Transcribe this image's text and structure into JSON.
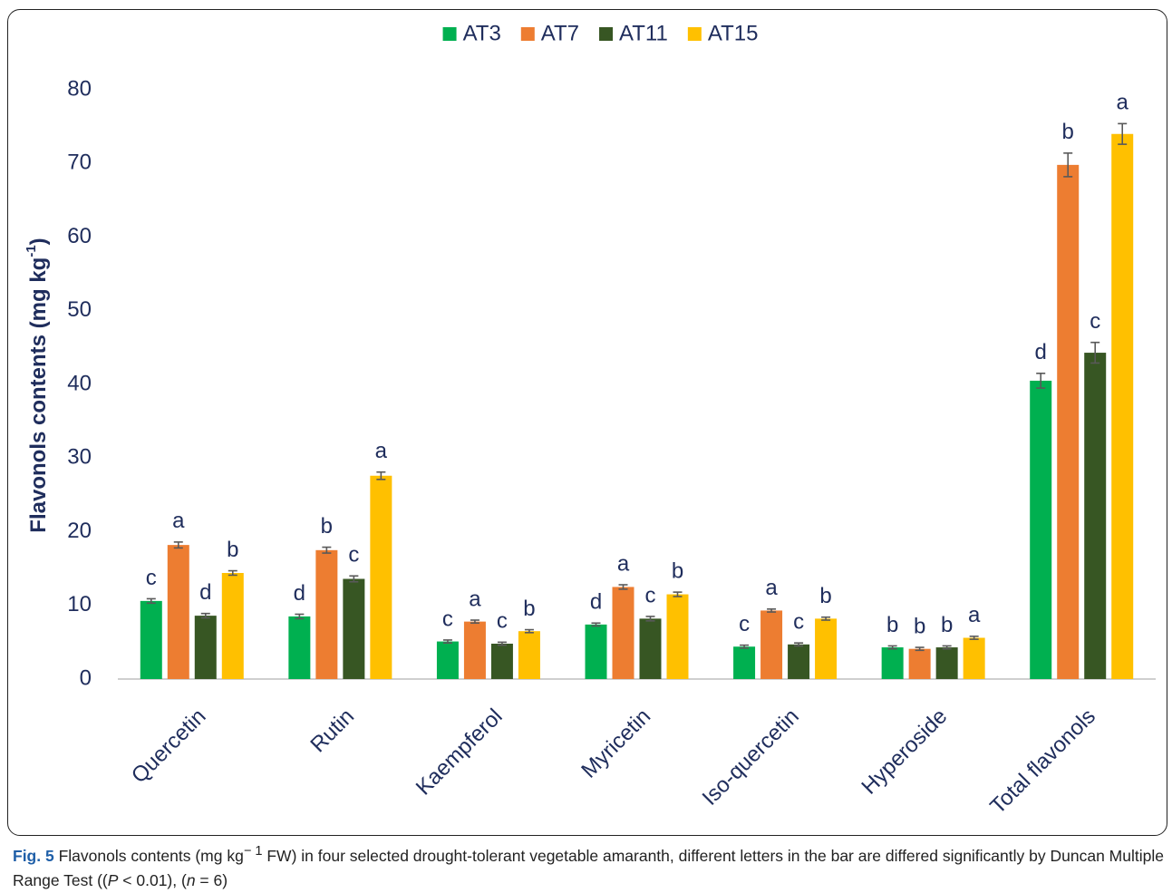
{
  "chart_data": {
    "type": "bar",
    "y_label": [
      "Flavonols contents (mg kg",
      "-1",
      ")"
    ],
    "categories": [
      "Quercetin",
      "Rutin",
      "Kaempferol",
      "Myricetin",
      "Iso-quercetin",
      "Hyperoside",
      "Total flavonols"
    ],
    "series": [
      {
        "name": "AT3",
        "color": "#00b050",
        "values": [
          10.6,
          8.5,
          5.1,
          7.4,
          4.4,
          4.3,
          40.5
        ],
        "errors": [
          0.3,
          0.3,
          0.2,
          0.2,
          0.2,
          0.2,
          1.0
        ],
        "letters": [
          "c",
          "d",
          "c",
          "d",
          "c",
          "b",
          "d"
        ]
      },
      {
        "name": "AT7",
        "color": "#ed7d31",
        "values": [
          18.2,
          17.5,
          7.8,
          12.5,
          9.3,
          4.1,
          69.8
        ],
        "errors": [
          0.4,
          0.4,
          0.2,
          0.3,
          0.2,
          0.2,
          1.6
        ],
        " letters_placeholder": null,
        "letters": [
          "a",
          "b",
          "a",
          "a",
          "a",
          "b",
          "b"
        ]
      },
      {
        "name": "AT11",
        "color": "#375623",
        "values": [
          8.6,
          13.6,
          4.8,
          8.2,
          4.7,
          4.3,
          44.3
        ],
        "errors": [
          0.3,
          0.4,
          0.2,
          0.3,
          0.2,
          0.2,
          1.4
        ],
        "letters": [
          "d",
          "c",
          "c",
          "c",
          "c",
          "b",
          "c"
        ]
      },
      {
        "name": "AT15",
        "color": "#ffc000",
        "values": [
          14.4,
          27.6,
          6.5,
          11.5,
          8.2,
          5.6,
          74.0
        ],
        "errors": [
          0.3,
          0.5,
          0.2,
          0.3,
          0.2,
          0.2,
          1.4
        ],
        "letters": [
          "b",
          "a",
          "b",
          "b",
          "b",
          "a",
          "a"
        ]
      }
    ],
    "ylim": [
      0,
      80
    ],
    "yticks": [
      0,
      10,
      20,
      30,
      40,
      50,
      60,
      70,
      80
    ],
    "grid": false,
    "legend": "top"
  },
  "caption": {
    "label": "Fig. 5",
    "parts": [
      " Flavonols contents (mg kg",
      "− 1",
      " FW) in four selected drought-tolerant vegetable amaranth, different letters in the bar are differed significantly by Duncan Multiple Range Test ((",
      "P",
      " < 0.01), (",
      "n",
      " = 6)"
    ]
  }
}
